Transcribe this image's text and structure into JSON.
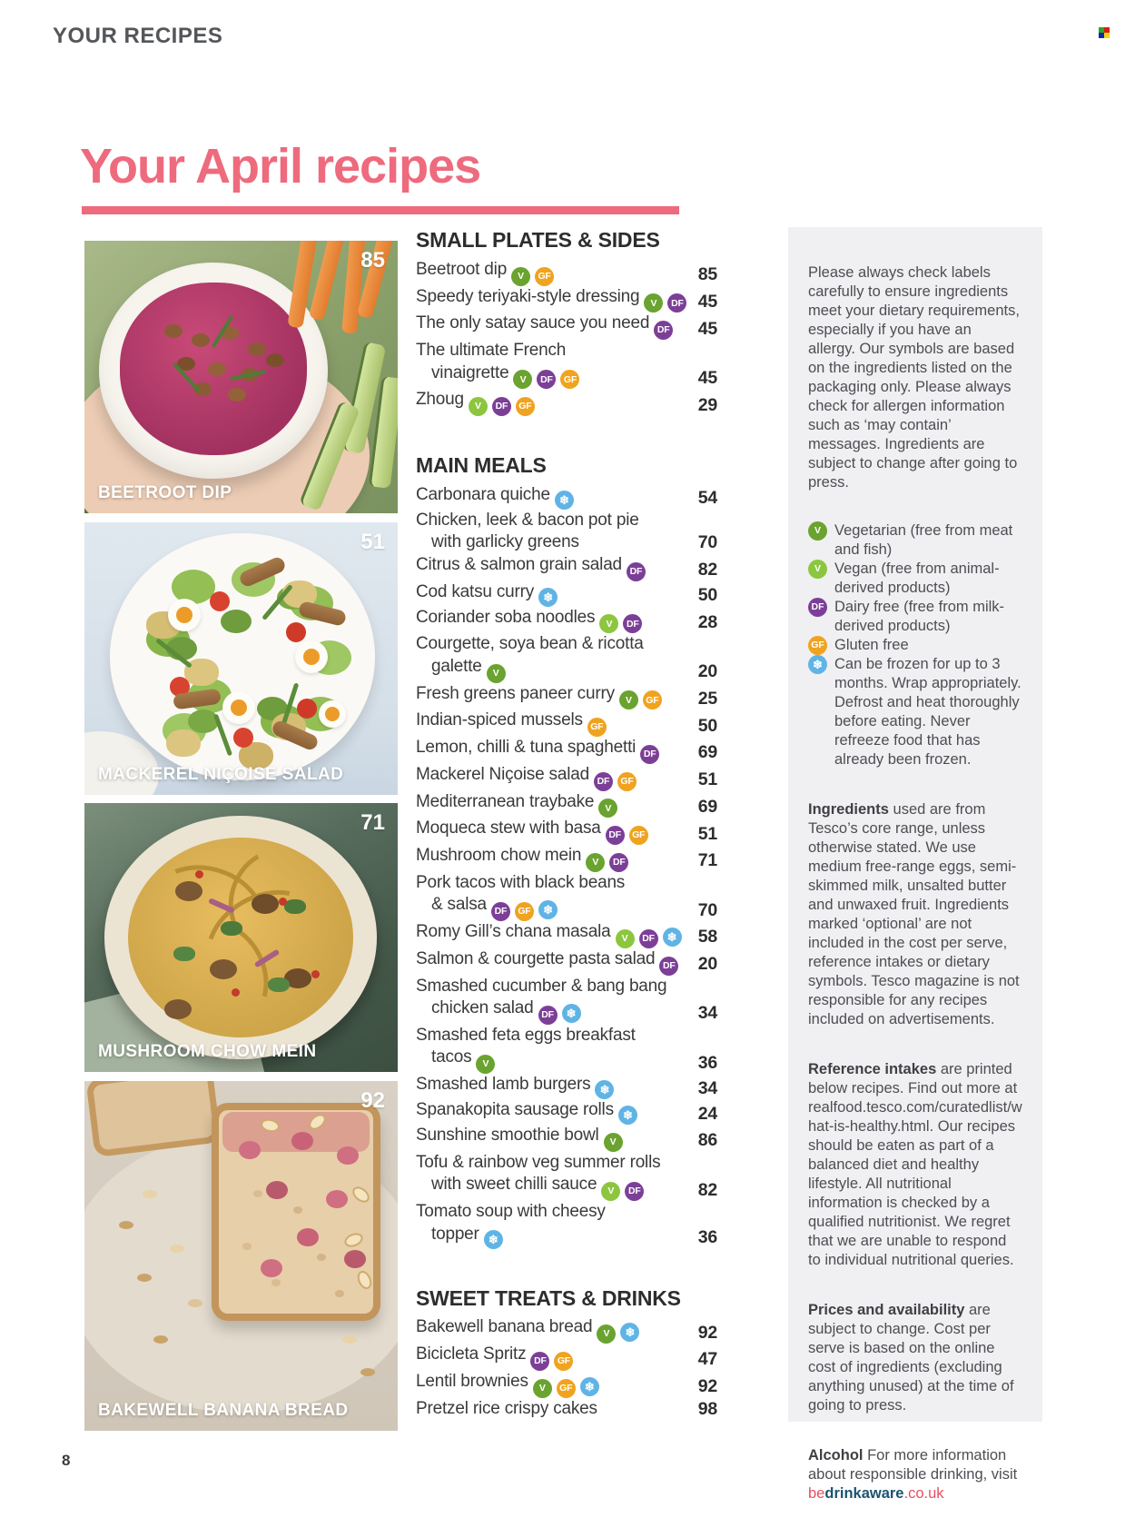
{
  "page": {
    "kicker": "YOUR RECIPES",
    "title": "Your April recipes",
    "page_number": "8",
    "accent_color": "#ee6a7d"
  },
  "photos": [
    {
      "label": "BEETROOT DIP",
      "page": "85"
    },
    {
      "label": "MACKEREL NIÇOISE SALAD",
      "page": "51"
    },
    {
      "label": "MUSHROOM CHOW MEIN",
      "page": "71"
    },
    {
      "label": "BAKEWELL BANANA BREAD",
      "page": "92"
    }
  ],
  "icons": {
    "VEG": {
      "bg": "#6aa32f",
      "glyph": "V",
      "name": "vegetarian-icon"
    },
    "VGN": {
      "bg": "#8cc63e",
      "glyph": "V",
      "name": "vegan-icon"
    },
    "DF": {
      "bg": "#7c3f97",
      "glyph": "DF",
      "name": "dairy-free-icon"
    },
    "GF": {
      "bg": "#f0a31f",
      "glyph": "GF",
      "name": "gluten-free-icon"
    },
    "FR": {
      "bg": "#5fb4e5",
      "glyph": "❄",
      "name": "freezable-icon"
    }
  },
  "toc": {
    "sections": [
      {
        "title": "SMALL PLATES & SIDES",
        "items": [
          {
            "lines": [
              "Beetroot dip"
            ],
            "icons": [
              "VEG",
              "GF"
            ],
            "page": "85"
          },
          {
            "lines": [
              "Speedy teriyaki-style dressing"
            ],
            "icons": [
              "VEG",
              "DF"
            ],
            "page": "45"
          },
          {
            "lines": [
              "The only satay sauce you need"
            ],
            "icons": [
              "DF"
            ],
            "page": "45"
          },
          {
            "lines": [
              "The ultimate French",
              "vinaigrette"
            ],
            "icons": [
              "VEG",
              "DF",
              "GF"
            ],
            "page": "45"
          },
          {
            "lines": [
              "Zhoug"
            ],
            "icons": [
              "VGN",
              "DF",
              "GF"
            ],
            "page": "29"
          }
        ]
      },
      {
        "title": "MAIN MEALS",
        "items": [
          {
            "lines": [
              "Carbonara quiche"
            ],
            "icons": [
              "FR"
            ],
            "page": "54"
          },
          {
            "lines": [
              "Chicken, leek & bacon pot pie",
              "with garlicky greens"
            ],
            "icons": [],
            "page": "70"
          },
          {
            "lines": [
              "Citrus & salmon grain salad"
            ],
            "icons": [
              "DF"
            ],
            "page": "82"
          },
          {
            "lines": [
              "Cod katsu curry"
            ],
            "icons": [
              "FR"
            ],
            "page": "50"
          },
          {
            "lines": [
              "Coriander soba noodles"
            ],
            "icons": [
              "VGN",
              "DF"
            ],
            "page": "28"
          },
          {
            "lines": [
              "Courgette, soya bean & ricotta",
              "galette"
            ],
            "icons": [
              "VEG"
            ],
            "page": "20"
          },
          {
            "lines": [
              "Fresh greens paneer curry"
            ],
            "icons": [
              "VEG",
              "GF"
            ],
            "page": "25"
          },
          {
            "lines": [
              "Indian-spiced mussels"
            ],
            "icons": [
              "GF"
            ],
            "page": "50"
          },
          {
            "lines": [
              "Lemon, chilli & tuna spaghetti"
            ],
            "icons": [
              "DF"
            ],
            "page": "69"
          },
          {
            "lines": [
              "Mackerel Niçoise salad"
            ],
            "icons": [
              "DF",
              "GF"
            ],
            "page": "51"
          },
          {
            "lines": [
              "Mediterranean traybake"
            ],
            "icons": [
              "VEG"
            ],
            "page": "69"
          },
          {
            "lines": [
              "Moqueca stew with basa"
            ],
            "icons": [
              "DF",
              "GF"
            ],
            "page": "51"
          },
          {
            "lines": [
              "Mushroom chow mein"
            ],
            "icons": [
              "VEG",
              "DF"
            ],
            "page": "71"
          },
          {
            "lines": [
              "Pork tacos with black beans",
              "& salsa"
            ],
            "icons": [
              "DF",
              "GF",
              "FR"
            ],
            "page": "70"
          },
          {
            "lines": [
              "Romy Gill’s chana masala"
            ],
            "icons": [
              "VGN",
              "DF",
              "FR"
            ],
            "page": "58"
          },
          {
            "lines": [
              "Salmon & courgette pasta salad"
            ],
            "icons": [
              "DF"
            ],
            "page": "20"
          },
          {
            "lines": [
              "Smashed cucumber & bang bang",
              "chicken salad"
            ],
            "icons": [
              "DF",
              "FR"
            ],
            "page": "34"
          },
          {
            "lines": [
              "Smashed feta eggs breakfast",
              "tacos"
            ],
            "icons": [
              "VEG"
            ],
            "page": "36"
          },
          {
            "lines": [
              "Smashed lamb burgers"
            ],
            "icons": [
              "FR"
            ],
            "page": "34"
          },
          {
            "lines": [
              "Spanakopita sausage rolls"
            ],
            "icons": [
              "FR"
            ],
            "page": "24"
          },
          {
            "lines": [
              "Sunshine smoothie bowl"
            ],
            "icons": [
              "VEG"
            ],
            "page": "86"
          },
          {
            "lines": [
              "Tofu & rainbow veg summer rolls",
              "with sweet chilli sauce"
            ],
            "icons": [
              "VGN",
              "DF"
            ],
            "page": "82"
          },
          {
            "lines": [
              "Tomato soup with cheesy",
              "topper"
            ],
            "icons": [
              "FR"
            ],
            "page": "36"
          }
        ]
      },
      {
        "title": "SWEET TREATS & DRINKS",
        "items": [
          {
            "lines": [
              "Bakewell banana bread"
            ],
            "icons": [
              "VEG",
              "FR"
            ],
            "page": "92"
          },
          {
            "lines": [
              "Bicicleta Spritz"
            ],
            "icons": [
              "DF",
              "GF"
            ],
            "page": "47"
          },
          {
            "lines": [
              "Lentil brownies"
            ],
            "icons": [
              "VEG",
              "GF",
              "FR"
            ],
            "page": "92"
          },
          {
            "lines": [
              "Pretzel rice crispy cakes"
            ],
            "icons": [],
            "page": "98"
          }
        ]
      }
    ]
  },
  "sidebar": {
    "intro": "Please always check labels carefully to ensure ingredients meet your dietary requirements, especially if you have an allergy. Our symbols are based on the ingredients listed on the packaging only. Please always check for allergen information such as ‘may contain’ messages. Ingredients are subject to change after going to press.",
    "legend": [
      {
        "icon": "VEG",
        "text": "Vegetarian (free from meat and fish)"
      },
      {
        "icon": "VGN",
        "text": "Vegan (free from animal-derived products)"
      },
      {
        "icon": "DF",
        "text": "Dairy free (free from milk-derived products)"
      },
      {
        "icon": "GF",
        "text": "Gluten free"
      },
      {
        "icon": "FR",
        "text": "Can be frozen for up to 3 months. Wrap appropriately. Defrost and heat thoroughly before eating. Never refreeze food that has already been frozen."
      }
    ],
    "paragraphs": [
      {
        "lead": "Ingredients",
        "text": " used are from Tesco’s core range, unless otherwise stated. We use medium free-range eggs, semi-skimmed milk, unsalted butter and unwaxed fruit. Ingredients marked ‘optional’ are not included in the cost per serve, reference intakes or dietary symbols. Tesco magazine is not responsible for any recipes included on advertisements."
      },
      {
        "lead": "Reference intakes",
        "text": " are printed below recipes. Find out more at realfood.tesco.com/curatedlist/what-is-healthy.html. Our recipes should be eaten as part of a balanced diet and healthy lifestyle. All nutritional information is checked by a qualified nutritionist. We regret that we are unable to respond to individual nutritional queries."
      },
      {
        "lead": "Prices and availability",
        "text": " are subject to change. Cost per serve is based on the online cost of ingredients (excluding anything unused) at the time of going to press."
      }
    ],
    "alcohol": {
      "lead": "Alcohol",
      "text": " For more information about responsible drinking, visit ",
      "link": {
        "be": "be",
        "drinkaware": "drinkaware",
        "couk": ".co.uk"
      }
    }
  }
}
